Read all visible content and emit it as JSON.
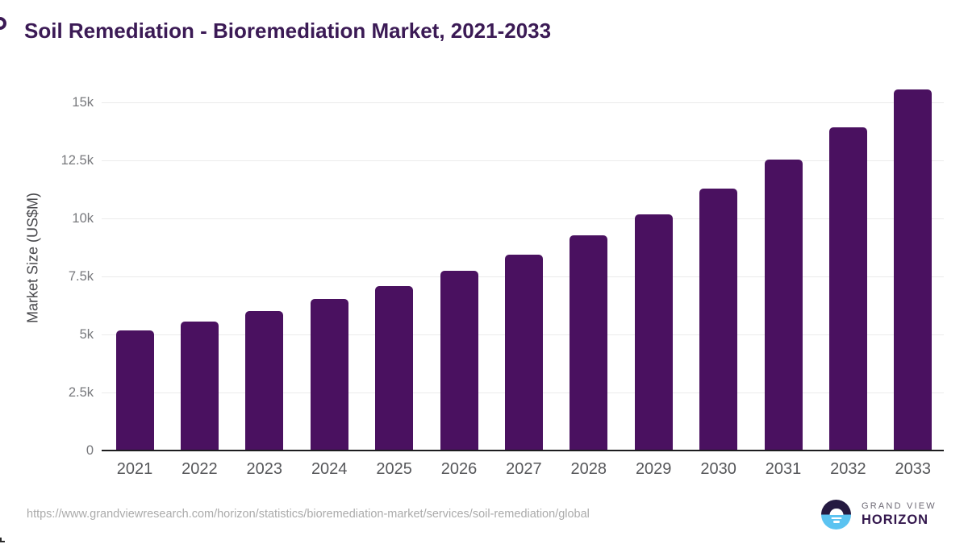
{
  "chart_data": {
    "type": "bar",
    "title": "Soil Remediation - Bioremediation Market, 2021-2033",
    "xlabel": "",
    "ylabel": "Market Size (US$M)",
    "categories": [
      "2021",
      "2022",
      "2023",
      "2024",
      "2025",
      "2026",
      "2027",
      "2028",
      "2029",
      "2030",
      "2031",
      "2032",
      "2033"
    ],
    "values": [
      5170,
      5560,
      6010,
      6530,
      7090,
      7740,
      8440,
      9270,
      10180,
      11280,
      12530,
      13920,
      15560
    ],
    "ylim": [
      0,
      16000
    ],
    "yticks": {
      "values": [
        0,
        2500,
        5000,
        7500,
        10000,
        12500,
        15000
      ],
      "labels": [
        "0",
        "2.5k",
        "5k",
        "7.5k",
        "10k",
        "12.5k",
        "15k"
      ]
    },
    "grid": true,
    "legend": "none",
    "bar_color": "#4a1160"
  },
  "footer": {
    "source_url": "https://www.grandviewresearch.com/horizon/statistics/bioremediation-market/services/soil-remediation/global",
    "logo": {
      "brand_top": "GRAND VIEW",
      "brand_bottom": "HORIZON"
    }
  },
  "colors": {
    "title_text": "#3b1a55",
    "bar": "#4a1160",
    "axis_line": "#1d1d1f",
    "gridline": "#ebebeb",
    "y_tick_label": "#77787c",
    "x_tick_label": "#56575a",
    "url_text": "#ababab",
    "logo_dark_half": "#251a41",
    "logo_light_half": "#5bc3f1",
    "logo_brand_top_text": "#6e6a75",
    "logo_brand_bottom_text": "#33174d"
  }
}
